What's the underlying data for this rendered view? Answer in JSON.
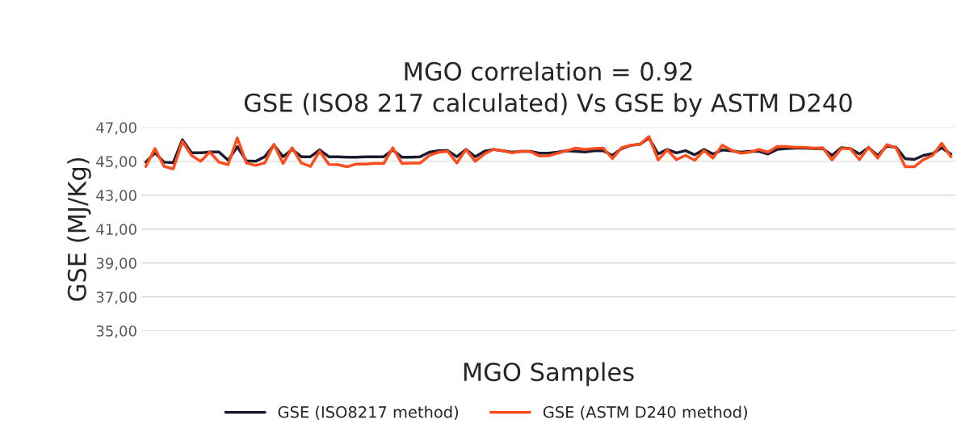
{
  "chart_data": {
    "type": "line",
    "title": "MGO correlation = 0.92\nGSE (ISO8 217 calculated) Vs GSE by ASTM D240",
    "xlabel": "MGO Samples",
    "ylabel": "GSE (MJ/Kg)",
    "categories": [
      null,
      null,
      null,
      null,
      null,
      null,
      null,
      null,
      null,
      null,
      null,
      null,
      null,
      null,
      null,
      null,
      null,
      null,
      null,
      null,
      null,
      null,
      null,
      null,
      null,
      null,
      null,
      null,
      null,
      null,
      null,
      null,
      null,
      null,
      null,
      null,
      null,
      null,
      null,
      null,
      null,
      null,
      null,
      null,
      null,
      null,
      null,
      null,
      null,
      null,
      null,
      null,
      null,
      null,
      null,
      null,
      null,
      null,
      null,
      null,
      null,
      null,
      null,
      null,
      null,
      null,
      null,
      null,
      null,
      null,
      null,
      null,
      null,
      null,
      null,
      null,
      null,
      null,
      null,
      null,
      null,
      null,
      null,
      null,
      null,
      null,
      null,
      null,
      null
    ],
    "series": [
      {
        "name": "GSE (ISO8217 method)",
        "color": "#1c1c30",
        "values": [
          44.95,
          45.5,
          44.95,
          44.92,
          46.27,
          45.5,
          45.5,
          45.55,
          45.55,
          45.06,
          45.86,
          45.03,
          45.0,
          45.27,
          45.95,
          45.27,
          45.7,
          45.27,
          45.27,
          45.67,
          45.27,
          45.27,
          45.24,
          45.24,
          45.27,
          45.27,
          45.27,
          45.67,
          45.24,
          45.24,
          45.27,
          45.54,
          45.62,
          45.63,
          45.27,
          45.7,
          45.27,
          45.59,
          45.7,
          45.62,
          45.54,
          45.59,
          45.59,
          45.48,
          45.48,
          45.54,
          45.62,
          45.59,
          45.55,
          45.62,
          45.63,
          45.35,
          45.75,
          45.94,
          46.0,
          46.38,
          45.43,
          45.7,
          45.5,
          45.63,
          45.38,
          45.7,
          45.43,
          45.67,
          45.62,
          45.54,
          45.59,
          45.59,
          45.43,
          45.7,
          45.75,
          45.78,
          45.78,
          45.75,
          45.75,
          45.35,
          45.8,
          45.75,
          45.43,
          45.8,
          45.35,
          45.9,
          45.83,
          45.16,
          45.11,
          45.35,
          45.46,
          45.8,
          45.43
        ]
      },
      {
        "name": "GSE (ASTM D240 method)",
        "color": "#ff4c1c",
        "values": [
          44.7,
          45.75,
          44.7,
          44.55,
          46.17,
          45.35,
          45.0,
          45.55,
          44.95,
          44.8,
          46.38,
          44.9,
          44.76,
          44.9,
          46.0,
          44.87,
          45.8,
          44.9,
          44.7,
          45.6,
          44.82,
          44.8,
          44.68,
          44.84,
          44.84,
          44.87,
          44.87,
          45.8,
          44.87,
          44.9,
          44.9,
          45.35,
          45.54,
          45.59,
          44.9,
          45.7,
          45.0,
          45.43,
          45.7,
          45.63,
          45.5,
          45.59,
          45.59,
          45.32,
          45.32,
          45.48,
          45.63,
          45.78,
          45.71,
          45.75,
          45.78,
          45.16,
          45.8,
          45.95,
          46.0,
          46.46,
          45.08,
          45.67,
          45.1,
          45.35,
          45.06,
          45.63,
          45.19,
          45.95,
          45.67,
          45.48,
          45.54,
          45.7,
          45.54,
          45.87,
          45.87,
          45.83,
          45.83,
          45.78,
          45.8,
          45.08,
          45.75,
          45.75,
          45.1,
          45.83,
          45.19,
          45.98,
          45.8,
          44.68,
          44.68,
          45.1,
          45.35,
          46.06,
          45.27
        ]
      }
    ],
    "ylim": [
      35,
      47
    ],
    "yticks": [
      {
        "value": 35,
        "label": "35,00"
      },
      {
        "value": 37,
        "label": "37,00"
      },
      {
        "value": 39,
        "label": "39,00"
      },
      {
        "value": 41,
        "label": "41,00"
      },
      {
        "value": 43,
        "label": "43,00"
      },
      {
        "value": 45,
        "label": "45,00"
      },
      {
        "value": 47,
        "label": "47,00"
      }
    ],
    "grid": "y",
    "legend": "bottom",
    "tick_labels": "y",
    "line_style": "solid",
    "marker": "none"
  }
}
